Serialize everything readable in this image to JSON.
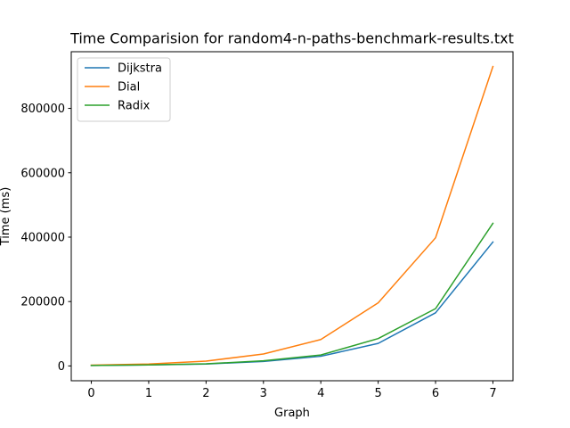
{
  "chart_data": {
    "type": "line",
    "title": "Time Comparision for random4-n-paths-benchmark-results.txt",
    "xlabel": "Graph",
    "ylabel": "Time (ms)",
    "x": [
      0,
      1,
      2,
      3,
      4,
      5,
      6,
      7
    ],
    "x_ticks": [
      "0",
      "1",
      "2",
      "3",
      "4",
      "5",
      "6",
      "7"
    ],
    "y_ticks": [
      "0",
      "200000",
      "400000",
      "600000",
      "800000"
    ],
    "y_tick_values": [
      0,
      200000,
      400000,
      600000,
      800000
    ],
    "xlim": [
      -0.35,
      7.35
    ],
    "ylim": [
      -46000,
      976000
    ],
    "legend_position": "upper-left",
    "grid": false,
    "series": [
      {
        "name": "Dijkstra",
        "color": "#1f77b4",
        "values": [
          1500,
          3000,
          6000,
          14000,
          30000,
          70000,
          165000,
          385000
        ]
      },
      {
        "name": "Dial",
        "color": "#ff7f0e",
        "values": [
          2500,
          6000,
          15000,
          37000,
          82000,
          196000,
          398000,
          930000
        ]
      },
      {
        "name": "Radix",
        "color": "#2ca02c",
        "values": [
          1500,
          3000,
          6500,
          16000,
          34000,
          85000,
          178000,
          443000
        ]
      }
    ]
  }
}
